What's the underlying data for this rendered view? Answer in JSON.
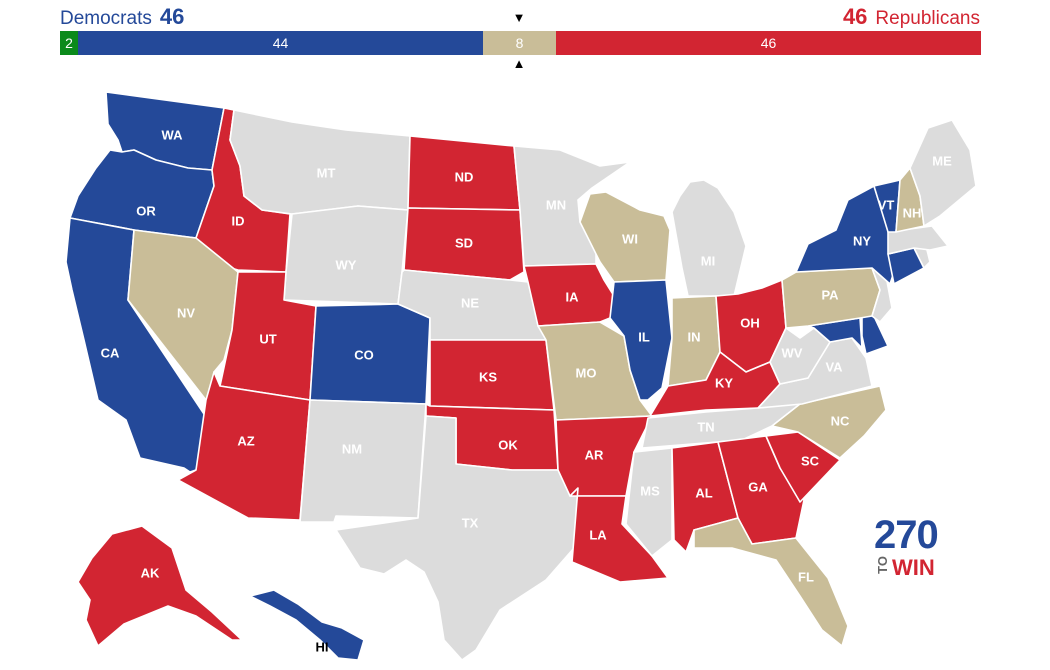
{
  "header": {
    "dem_label": "Democrats",
    "dem_total": "46",
    "rep_total": "46",
    "rep_label": "Republicans"
  },
  "bar": {
    "independent": "2",
    "democrat": "44",
    "tossup": "8",
    "republican": "46"
  },
  "colors": {
    "democrat": "#244999",
    "republican": "#d22532",
    "tossup": "#c9bd98",
    "independent": "#0b8a1b",
    "no_race": "#dcdcdc"
  },
  "logo": {
    "number": "270",
    "to": "TO",
    "win": "WIN"
  },
  "states": {
    "WA": {
      "label": "WA",
      "status": "democrat"
    },
    "OR": {
      "label": "OR",
      "status": "democrat"
    },
    "CA": {
      "label": "CA",
      "status": "democrat"
    },
    "ID": {
      "label": "ID",
      "status": "republican"
    },
    "NV": {
      "label": "NV",
      "status": "tossup"
    },
    "MT": {
      "label": "MT",
      "status": "no_race"
    },
    "WY": {
      "label": "WY",
      "status": "no_race"
    },
    "UT": {
      "label": "UT",
      "status": "republican"
    },
    "AZ": {
      "label": "AZ",
      "status": "republican"
    },
    "CO": {
      "label": "CO",
      "status": "democrat"
    },
    "NM": {
      "label": "NM",
      "status": "no_race"
    },
    "ND": {
      "label": "ND",
      "status": "republican"
    },
    "SD": {
      "label": "SD",
      "status": "republican"
    },
    "NE": {
      "label": "NE",
      "status": "no_race"
    },
    "KS": {
      "label": "KS",
      "status": "republican"
    },
    "OK": {
      "label": "OK",
      "status": "republican"
    },
    "TX": {
      "label": "TX",
      "status": "no_race"
    },
    "MN": {
      "label": "MN",
      "status": "no_race"
    },
    "IA": {
      "label": "IA",
      "status": "republican"
    },
    "MO": {
      "label": "MO",
      "status": "tossup"
    },
    "AR": {
      "label": "AR",
      "status": "republican"
    },
    "LA": {
      "label": "LA",
      "status": "republican"
    },
    "WI": {
      "label": "WI",
      "status": "tossup"
    },
    "IL": {
      "label": "IL",
      "status": "democrat"
    },
    "MI": {
      "label": "MI",
      "status": "no_race"
    },
    "IN": {
      "label": "IN",
      "status": "tossup"
    },
    "OH": {
      "label": "OH",
      "status": "republican"
    },
    "KY": {
      "label": "KY",
      "status": "republican"
    },
    "TN": {
      "label": "TN",
      "status": "no_race"
    },
    "MS": {
      "label": "MS",
      "status": "no_race"
    },
    "AL": {
      "label": "AL",
      "status": "republican"
    },
    "GA": {
      "label": "GA",
      "status": "republican"
    },
    "FL": {
      "label": "FL",
      "status": "tossup"
    },
    "SC": {
      "label": "SC",
      "status": "republican"
    },
    "NC": {
      "label": "NC",
      "status": "tossup"
    },
    "VA": {
      "label": "VA",
      "status": "no_race"
    },
    "WV": {
      "label": "WV",
      "status": "no_race"
    },
    "MD": {
      "label": "",
      "status": "democrat"
    },
    "DE": {
      "label": "",
      "status": "democrat"
    },
    "PA": {
      "label": "PA",
      "status": "tossup"
    },
    "NJ": {
      "label": "",
      "status": "no_race"
    },
    "NY": {
      "label": "NY",
      "status": "democrat"
    },
    "CT": {
      "label": "",
      "status": "democrat"
    },
    "RI": {
      "label": "",
      "status": "no_race"
    },
    "MA": {
      "label": "",
      "status": "no_race"
    },
    "VT": {
      "label": "VT",
      "status": "democrat"
    },
    "NH": {
      "label": "NH",
      "status": "tossup"
    },
    "ME": {
      "label": "ME",
      "status": "no_race"
    },
    "AK": {
      "label": "AK",
      "status": "republican"
    },
    "HI": {
      "label": "HI",
      "status": "democrat"
    }
  }
}
